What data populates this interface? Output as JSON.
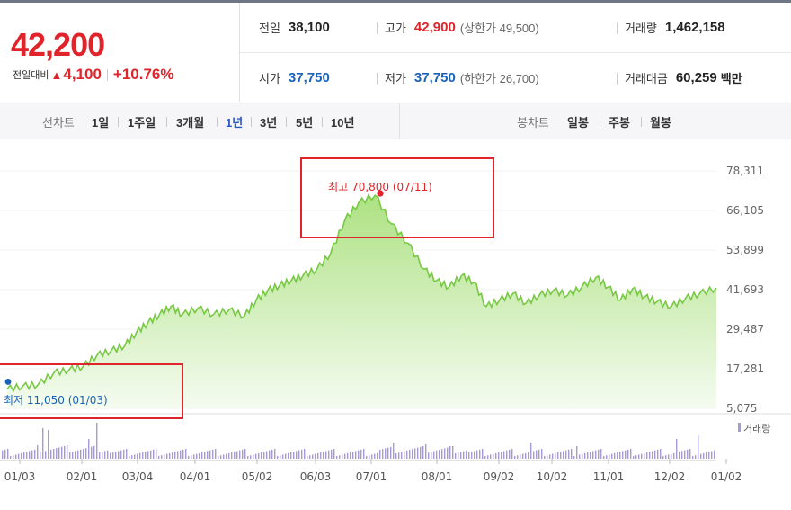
{
  "price": {
    "current": "42,200",
    "change_label": "전일대비",
    "change_value": "4,100",
    "change_pct": "+10.76%"
  },
  "summary": {
    "prev_close": {
      "label": "전일",
      "value": "38,100"
    },
    "high": {
      "label": "고가",
      "value": "42,900",
      "limit": "(상한가 49,500)"
    },
    "volume": {
      "label": "거래량",
      "value": "1,462,158"
    },
    "open": {
      "label": "시가",
      "value": "37,750"
    },
    "low": {
      "label": "저가",
      "value": "37,750",
      "limit": "(하한가 26,700)"
    },
    "trade_value": {
      "label": "거래대금",
      "value": "60,259",
      "unit": "백만"
    }
  },
  "line_tabs": {
    "label": "선차트",
    "items": [
      "1일",
      "1주일",
      "3개월",
      "1년",
      "3년",
      "5년",
      "10년"
    ],
    "active": "1년"
  },
  "candle_tabs": {
    "label": "봉차트",
    "items": [
      "일봉",
      "주봉",
      "월봉"
    ]
  },
  "chart_data": {
    "type": "area",
    "period": "1년",
    "x_ticks": [
      "01/03",
      "02/01",
      "03/04",
      "04/01",
      "05/02",
      "06/03",
      "07/01",
      "08/01",
      "09/02",
      "10/02",
      "11/01",
      "12/02",
      "01/02"
    ],
    "y_ticks": [
      "78,311",
      "66,105",
      "53,899",
      "41,693",
      "29,487",
      "17,281",
      "5,075"
    ],
    "ylim": [
      5075,
      78311
    ],
    "price_series": [
      {
        "x": "01/03",
        "y": 11050
      },
      {
        "x": "01/10",
        "y": 11900
      },
      {
        "x": "01/17",
        "y": 12400
      },
      {
        "x": "01/24",
        "y": 16000
      },
      {
        "x": "01/31",
        "y": 17000
      },
      {
        "x": "02/07",
        "y": 18000
      },
      {
        "x": "02/14",
        "y": 21500
      },
      {
        "x": "02/21",
        "y": 22800
      },
      {
        "x": "02/28",
        "y": 24500
      },
      {
        "x": "03/07",
        "y": 28500
      },
      {
        "x": "03/14",
        "y": 31500
      },
      {
        "x": "03/21",
        "y": 34000
      },
      {
        "x": "03/28",
        "y": 36500
      },
      {
        "x": "04/04",
        "y": 34000
      },
      {
        "x": "04/11",
        "y": 36000
      },
      {
        "x": "04/18",
        "y": 34000
      },
      {
        "x": "04/25",
        "y": 35500
      },
      {
        "x": "05/02",
        "y": 33500
      },
      {
        "x": "05/09",
        "y": 38500
      },
      {
        "x": "05/16",
        "y": 41500
      },
      {
        "x": "05/23",
        "y": 43000
      },
      {
        "x": "05/30",
        "y": 44500
      },
      {
        "x": "06/06",
        "y": 46000
      },
      {
        "x": "06/13",
        "y": 48000
      },
      {
        "x": "06/20",
        "y": 53000
      },
      {
        "x": "06/27",
        "y": 63000
      },
      {
        "x": "07/04",
        "y": 68500
      },
      {
        "x": "07/11",
        "y": 70800
      },
      {
        "x": "07/18",
        "y": 62000
      },
      {
        "x": "07/25",
        "y": 56000
      },
      {
        "x": "08/01",
        "y": 48000
      },
      {
        "x": "08/08",
        "y": 44500
      },
      {
        "x": "08/15",
        "y": 42500
      },
      {
        "x": "08/22",
        "y": 46000
      },
      {
        "x": "08/29",
        "y": 44000
      },
      {
        "x": "09/05",
        "y": 36500
      },
      {
        "x": "09/12",
        "y": 38500
      },
      {
        "x": "09/19",
        "y": 40500
      },
      {
        "x": "09/26",
        "y": 37500
      },
      {
        "x": "10/03",
        "y": 40000
      },
      {
        "x": "10/10",
        "y": 41500
      },
      {
        "x": "10/17",
        "y": 40000
      },
      {
        "x": "10/24",
        "y": 42500
      },
      {
        "x": "10/31",
        "y": 45500
      },
      {
        "x": "11/07",
        "y": 42500
      },
      {
        "x": "11/14",
        "y": 38500
      },
      {
        "x": "11/21",
        "y": 42000
      },
      {
        "x": "11/28",
        "y": 39500
      },
      {
        "x": "12/05",
        "y": 38000
      },
      {
        "x": "12/12",
        "y": 36500
      },
      {
        "x": "12/19",
        "y": 39000
      },
      {
        "x": "12/26",
        "y": 40500
      },
      {
        "x": "01/02",
        "y": 42200
      }
    ],
    "high_annotation": {
      "label": "최고 70,800 (07/11)",
      "value": 70800
    },
    "low_annotation": {
      "label": "최저 11,050 (01/03)",
      "value": 11050
    },
    "volume_legend": "거래량",
    "colors": {
      "line": "#77c843",
      "area_top": "#a9e07c",
      "area_bottom": "#f4fbef",
      "high": "#e0242b",
      "low": "#1a63b8",
      "volume": "#a89bd3",
      "callout_box": "#e0242b"
    }
  }
}
